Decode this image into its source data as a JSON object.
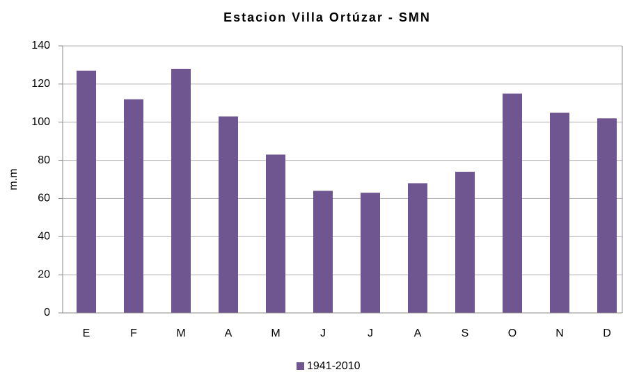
{
  "chart_data": {
    "type": "bar",
    "title": "Estacion Villa Ortúzar - SMN",
    "y_label": "m.m",
    "categories": [
      "E",
      "F",
      "M",
      "A",
      "M",
      "J",
      "J",
      "A",
      "S",
      "O",
      "N",
      "D"
    ],
    "series": [
      {
        "name": "1941-2010",
        "color": "#6f5690",
        "values": [
          127,
          112,
          128,
          103,
          83,
          64,
          63,
          68,
          74,
          115,
          105,
          102
        ]
      }
    ],
    "ylim": [
      0,
      140
    ],
    "yticks": [
      0,
      20,
      40,
      60,
      80,
      100,
      120,
      140
    ],
    "grid": true,
    "legend": "bottom"
  }
}
